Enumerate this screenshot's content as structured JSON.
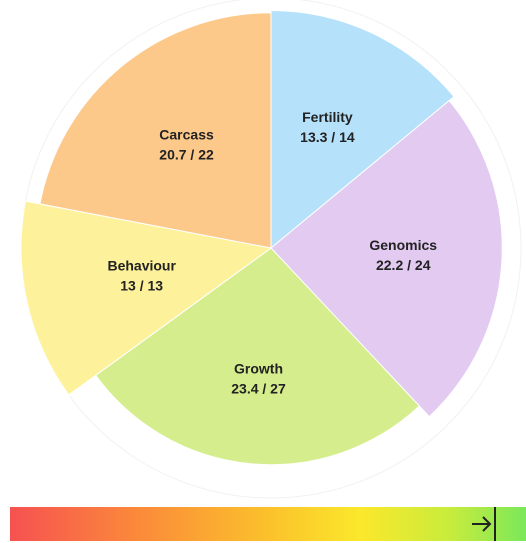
{
  "chart_data": {
    "type": "polar_area",
    "segments": [
      {
        "name": "Fertility",
        "score": 13.3,
        "max": 14,
        "value_label": "13.3 / 14",
        "color": "#b5e1fb"
      },
      {
        "name": "Genomics",
        "score": 22.2,
        "max": 24,
        "value_label": "22.2 / 24",
        "color": "#e2caf1"
      },
      {
        "name": "Growth",
        "score": 23.4,
        "max": 27,
        "value_label": "23.4 / 27",
        "color": "#d5ed8d"
      },
      {
        "name": "Behaviour",
        "score": 13,
        "max": 13,
        "value_label": "13 / 13",
        "color": "#fdf29b"
      },
      {
        "name": "Carcass",
        "score": 20.7,
        "max": 22,
        "value_label": "20.7 / 22",
        "color": "#fdc98b"
      }
    ]
  }
}
